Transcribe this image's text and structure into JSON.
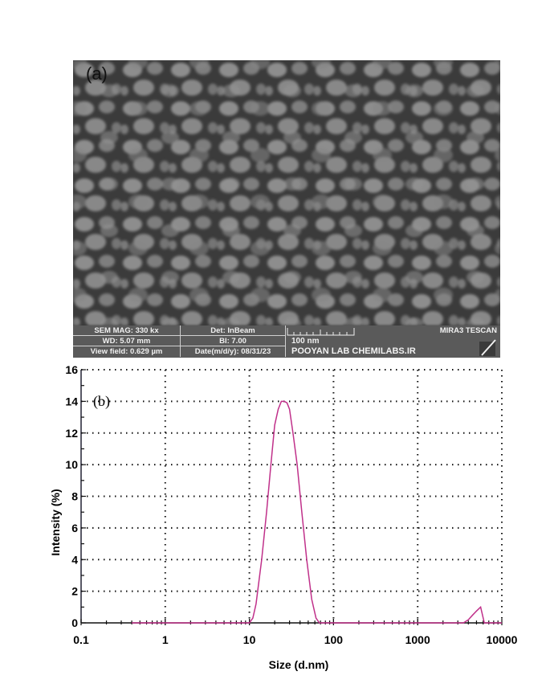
{
  "panel_a": {
    "label": "(a)",
    "infobar": {
      "sem_mag": "SEM MAG: 330 kx",
      "det": "Det: InBeam",
      "wd": "WD: 5.07 mm",
      "bi": "BI: 7.00",
      "view_field": "View field: 0.629 µm",
      "date": "Date(m/d/y): 08/31/23",
      "scale": "100 nm",
      "instrument": "MIRA3 TESCAN",
      "lab": "POOYAN  LAB CHEMILABS.IR"
    }
  },
  "chart_data": {
    "type": "line",
    "panel_label": "(b)",
    "title": "",
    "xlabel": "Size (d.nm)",
    "ylabel": "Intensity (%)",
    "xscale": "log",
    "xlim": [
      0.1,
      10000
    ],
    "ylim": [
      0,
      16
    ],
    "xticks": [
      "0.1",
      "1",
      "10",
      "100",
      "1000",
      "10000"
    ],
    "yticks": [
      "0",
      "2",
      "4",
      "6",
      "8",
      "10",
      "12",
      "14",
      "16"
    ],
    "grid": true,
    "grid_style": "dotted",
    "line_color": "#c0308a",
    "series": [
      {
        "name": "Intensity",
        "x": [
          0.4,
          1,
          5,
          10,
          11,
          12,
          14,
          16,
          18,
          20,
          22,
          24,
          26,
          28,
          30,
          33,
          37,
          42,
          48,
          55,
          62,
          68,
          75,
          100,
          1000,
          3500,
          4000,
          4500,
          5000,
          5600,
          6200,
          6600,
          10000
        ],
        "y": [
          0,
          0,
          0,
          0,
          0.3,
          1.2,
          4,
          7,
          10,
          12.5,
          13.5,
          14,
          14,
          13.9,
          13.5,
          12,
          10,
          7,
          4,
          1.5,
          0.3,
          0,
          0,
          0,
          0,
          0,
          0.2,
          0.5,
          0.75,
          1.0,
          0,
          0,
          0
        ]
      }
    ],
    "peaks": [
      {
        "size_dnm": 25,
        "intensity": 14
      },
      {
        "size_dnm": 5600,
        "intensity": 1
      }
    ]
  }
}
